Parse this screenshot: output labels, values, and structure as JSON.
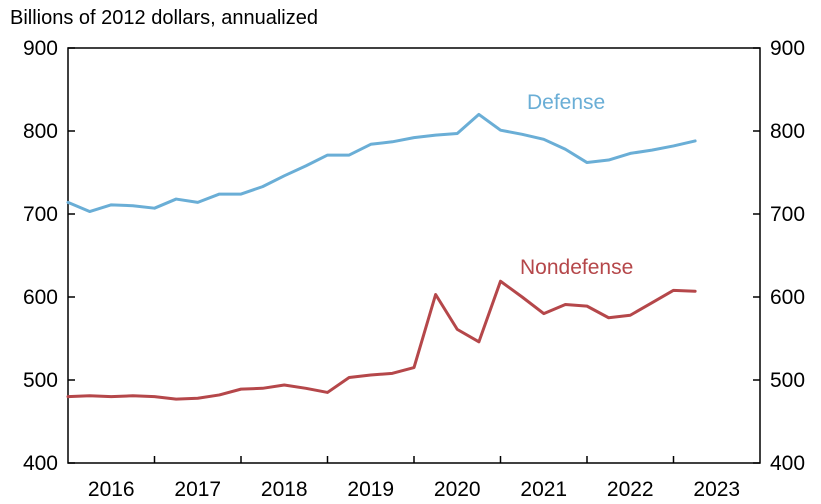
{
  "chart_data": {
    "type": "line",
    "unit_label": "Billions of 2012 dollars, annualized",
    "x_ticks": [
      "2016",
      "2017",
      "2018",
      "2019",
      "2020",
      "2021",
      "2022",
      "2023"
    ],
    "y_ticks": [
      "400",
      "500",
      "600",
      "700",
      "800",
      "900"
    ],
    "ylim": [
      400,
      900
    ],
    "xlim": [
      2016,
      2024
    ],
    "grid": false,
    "colors": {
      "defense": "#6aaed6",
      "nondefense": "#b5474a"
    },
    "series": [
      {
        "name": "Defense",
        "x": [
          2016.0,
          2016.25,
          2016.5,
          2016.75,
          2017.0,
          2017.25,
          2017.5,
          2017.75,
          2018.0,
          2018.25,
          2018.5,
          2018.75,
          2019.0,
          2019.25,
          2019.5,
          2019.75,
          2020.0,
          2020.25,
          2020.5,
          2020.75,
          2021.0,
          2021.25,
          2021.5,
          2021.75,
          2022.0,
          2022.25,
          2022.5,
          2022.75,
          2023.0,
          2023.25
        ],
        "values": [
          714,
          703,
          711,
          710,
          707,
          718,
          714,
          724,
          724,
          733,
          746,
          758,
          771,
          771,
          784,
          787,
          792,
          795,
          797,
          820,
          801,
          796,
          790,
          778,
          762,
          765,
          773,
          777,
          782,
          788
        ]
      },
      {
        "name": "Nondefense",
        "x": [
          2016.0,
          2016.25,
          2016.5,
          2016.75,
          2017.0,
          2017.25,
          2017.5,
          2017.75,
          2018.0,
          2018.25,
          2018.5,
          2018.75,
          2019.0,
          2019.25,
          2019.5,
          2019.75,
          2020.0,
          2020.25,
          2020.5,
          2020.75,
          2021.0,
          2021.25,
          2021.5,
          2021.75,
          2022.0,
          2022.25,
          2022.5,
          2022.75,
          2023.0,
          2023.25
        ],
        "values": [
          480,
          481,
          480,
          481,
          480,
          477,
          478,
          482,
          489,
          490,
          494,
          490,
          485,
          503,
          506,
          508,
          515,
          603,
          561,
          546,
          619,
          600,
          580,
          591,
          589,
          575,
          578,
          593,
          608,
          607
        ]
      }
    ]
  }
}
